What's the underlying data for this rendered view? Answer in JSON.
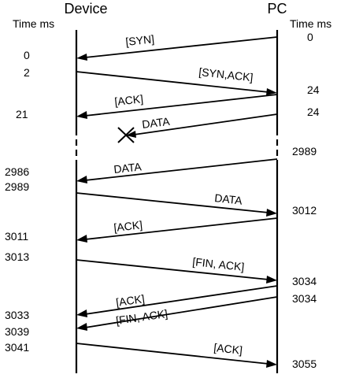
{
  "participants": {
    "device": "Device",
    "pc": "PC"
  },
  "column_headers": {
    "left": "Time ms",
    "right": "Time ms"
  },
  "messages": [
    {
      "label": "[SYN]",
      "direction": "pc-to-device"
    },
    {
      "label": "[SYN,ACK]",
      "direction": "device-to-pc"
    },
    {
      "label": "[ACK]",
      "direction": "pc-to-device"
    },
    {
      "label": "DATA",
      "direction": "pc-to-device",
      "lost": true
    },
    {
      "label": "DATA",
      "direction": "pc-to-device"
    },
    {
      "label": "DATA",
      "direction": "device-to-pc"
    },
    {
      "label": "[ACK]",
      "direction": "pc-to-device"
    },
    {
      "label": "[FIN, ACK]",
      "direction": "device-to-pc"
    },
    {
      "label": "[ACK]",
      "direction": "pc-to-device"
    },
    {
      "label": "[FIN, ACK]",
      "direction": "pc-to-device"
    },
    {
      "label": "[ACK]",
      "direction": "device-to-pc"
    }
  ],
  "device_times": [
    "0",
    "2",
    "21",
    "2986",
    "2989",
    "3011",
    "3013",
    "3033",
    "3039",
    "3041"
  ],
  "pc_times": [
    "0",
    "24",
    "24",
    "2989",
    "3012",
    "3034",
    "3034",
    "3055"
  ]
}
